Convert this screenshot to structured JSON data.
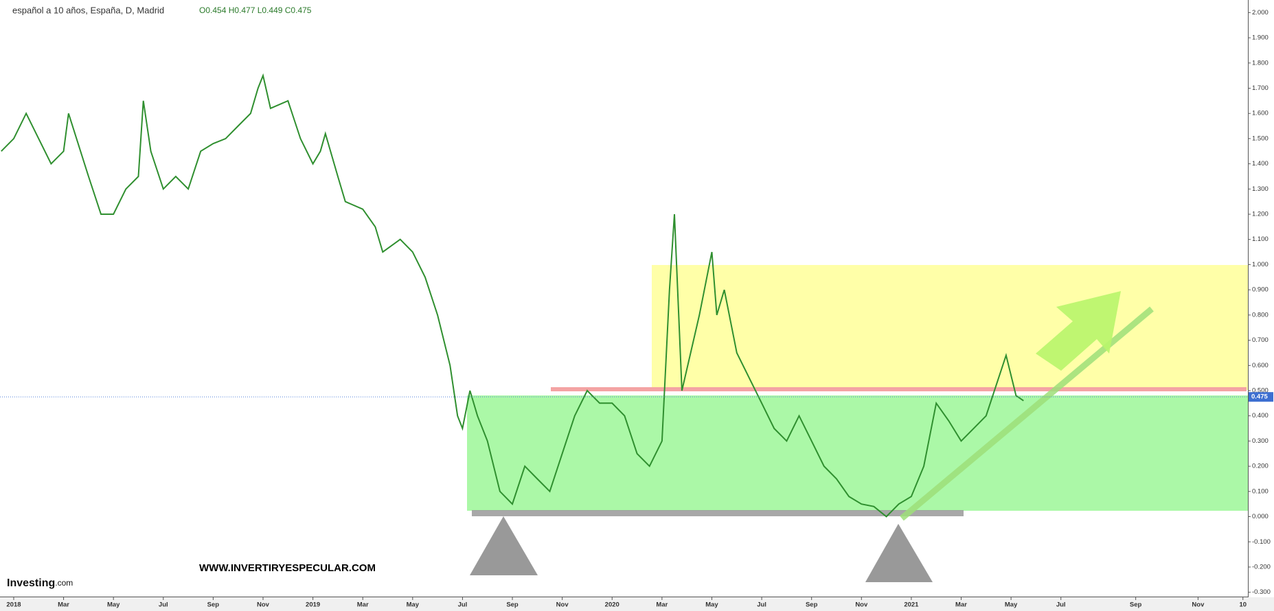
{
  "chart_data": {
    "type": "line",
    "title": "español a 10 años, España, D, Madrid",
    "ohlc_text": "O0.454 H0.477 L0.449 C0.475",
    "annotation": "WWW.INVERTIRYESPECULAR.COM",
    "logo": "Investing",
    "logo_suffix": ".com",
    "last_price": 0.475,
    "color": "#2f8f2f",
    "x": [
      -0.5,
      0,
      0.5,
      1.5,
      2,
      2.2,
      3,
      3.5,
      4,
      4.5,
      5,
      5.2,
      5.5,
      6,
      6.5,
      7,
      7.5,
      8,
      8.5,
      9,
      9.5,
      9.8,
      10,
      10.3,
      11,
      11.5,
      12,
      12.3,
      12.5,
      13,
      13.3,
      14,
      14.5,
      14.8,
      15.5,
      16,
      16.5,
      17,
      17.5,
      17.8,
      18,
      18.3,
      18.6,
      19,
      19.5,
      20,
      20.5,
      21,
      21.5,
      22,
      22.5,
      23,
      23.5,
      24,
      24.5,
      25,
      25.5,
      26,
      26.3,
      26.5,
      26.8,
      27.5,
      28,
      28.2,
      28.5,
      29,
      29.5,
      30,
      30.5,
      31,
      31.5,
      32,
      32.5,
      33,
      33.5,
      34,
      34.5,
      35,
      35.5,
      36,
      36.5,
      37,
      37.5,
      38,
      38.5,
      39,
      39.5,
      39.8,
      40.2,
      40.5
    ],
    "values": [
      1.45,
      1.5,
      1.6,
      1.4,
      1.45,
      1.6,
      1.35,
      1.2,
      1.2,
      1.3,
      1.35,
      1.65,
      1.45,
      1.3,
      1.35,
      1.3,
      1.45,
      1.48,
      1.5,
      1.55,
      1.6,
      1.7,
      1.75,
      1.62,
      1.65,
      1.5,
      1.4,
      1.45,
      1.52,
      1.35,
      1.25,
      1.22,
      1.15,
      1.05,
      1.1,
      1.05,
      0.95,
      0.8,
      0.6,
      0.4,
      0.35,
      0.5,
      0.4,
      0.3,
      0.1,
      0.05,
      0.2,
      0.15,
      0.1,
      0.25,
      0.4,
      0.5,
      0.45,
      0.45,
      0.4,
      0.25,
      0.2,
      0.3,
      0.9,
      1.2,
      0.5,
      0.8,
      1.05,
      0.8,
      0.9,
      0.65,
      0.55,
      0.45,
      0.35,
      0.3,
      0.4,
      0.3,
      0.2,
      0.15,
      0.08,
      0.05,
      0.04,
      0.0,
      0.05,
      0.08,
      0.2,
      0.45,
      0.38,
      0.3,
      0.35,
      0.4,
      0.55,
      0.64,
      0.48,
      0.46
    ],
    "xlim": [
      -0.55,
      49.5
    ],
    "ylim": [
      -0.32,
      2.05
    ],
    "xticks": [
      {
        "value": 0,
        "label": "2018"
      },
      {
        "value": 2,
        "label": "Mar"
      },
      {
        "value": 4,
        "label": "May"
      },
      {
        "value": 6,
        "label": "Jul"
      },
      {
        "value": 8,
        "label": "Sep"
      },
      {
        "value": 10,
        "label": "Nov"
      },
      {
        "value": 12,
        "label": "2019"
      },
      {
        "value": 14,
        "label": "Mar"
      },
      {
        "value": 16,
        "label": "May"
      },
      {
        "value": 18,
        "label": "Jul"
      },
      {
        "value": 20,
        "label": "Sep"
      },
      {
        "value": 22,
        "label": "Nov"
      },
      {
        "value": 24,
        "label": "2020"
      },
      {
        "value": 26,
        "label": "Mar"
      },
      {
        "value": 28,
        "label": "May"
      },
      {
        "value": 30,
        "label": "Jul"
      },
      {
        "value": 32,
        "label": "Sep"
      },
      {
        "value": 34,
        "label": "Nov"
      },
      {
        "value": 36,
        "label": "2021"
      },
      {
        "value": 38,
        "label": "Mar"
      },
      {
        "value": 40,
        "label": "May"
      },
      {
        "value": 42,
        "label": "Jul"
      },
      {
        "value": 45,
        "label": "Sep"
      },
      {
        "value": 47.5,
        "label": "Nov"
      },
      {
        "value": 49.3,
        "label": "10"
      }
    ],
    "yticks": [
      {
        "value": -0.3,
        "label": "-0.300"
      },
      {
        "value": -0.2,
        "label": "-0.200"
      },
      {
        "value": -0.1,
        "label": "-0.100"
      },
      {
        "value": 0,
        "label": "0.000"
      },
      {
        "value": 0.1,
        "label": "0.100"
      },
      {
        "value": 0.2,
        "label": "0.200"
      },
      {
        "value": 0.3,
        "label": "0.300"
      },
      {
        "value": 0.4,
        "label": "0.400"
      },
      {
        "value": 0.5,
        "label": "0.500"
      },
      {
        "value": 0.6,
        "label": "0.600"
      },
      {
        "value": 0.7,
        "label": "0.700"
      },
      {
        "value": 0.8,
        "label": "0.800"
      },
      {
        "value": 0.9,
        "label": "0.900"
      },
      {
        "value": 1,
        "label": "1.000"
      },
      {
        "value": 1.1,
        "label": "1.100"
      },
      {
        "value": 1.2,
        "label": "1.200"
      },
      {
        "value": 1.3,
        "label": "1.300"
      },
      {
        "value": 1.4,
        "label": "1.400"
      },
      {
        "value": 1.5,
        "label": "1.500"
      },
      {
        "value": 1.6,
        "label": "1.600"
      },
      {
        "value": 1.7,
        "label": "1.700"
      },
      {
        "value": 1.8,
        "label": "1.800"
      },
      {
        "value": 1.9,
        "label": "1.900"
      },
      {
        "value": 2,
        "label": "2.000"
      }
    ]
  }
}
